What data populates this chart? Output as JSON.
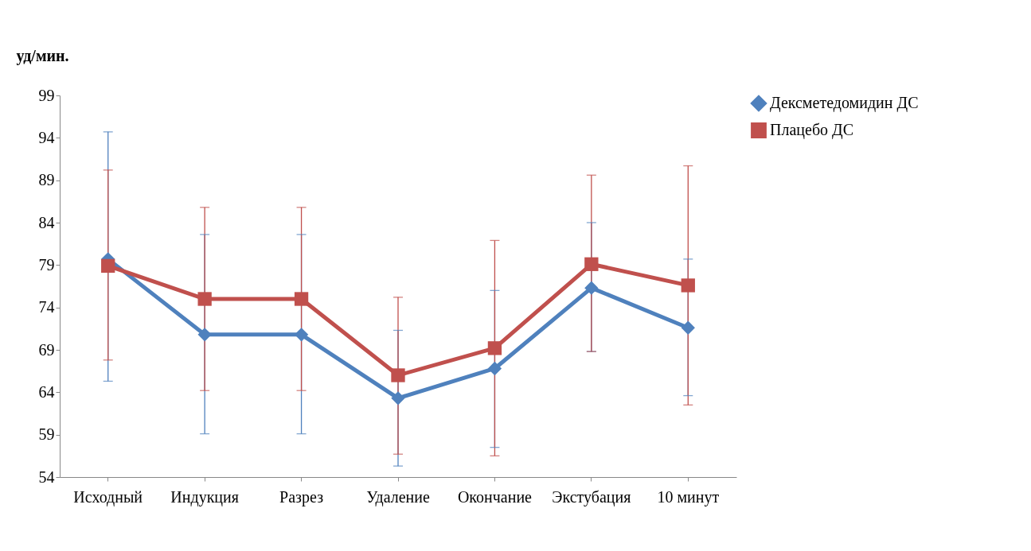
{
  "chart_data": {
    "type": "line",
    "ylabel": "уд/мин.",
    "categories": [
      "Исходный",
      "Индукция",
      "Разрез",
      "Удаление",
      "Окончание",
      "Экстубация",
      "10 минут"
    ],
    "ylim": [
      54,
      99
    ],
    "yticks": [
      54,
      59,
      64,
      69,
      74,
      79,
      84,
      89,
      94,
      99
    ],
    "grid": false,
    "legend": "right",
    "line_style": "solid",
    "series": [
      {
        "name": "Дексметедомидин ДС",
        "color": "#4f81bd",
        "marker": "diamond",
        "values": [
          79.7,
          70.8,
          70.8,
          63.3,
          66.8,
          76.3,
          71.6
        ],
        "errors": [
          [
            65.3,
            94.7
          ],
          [
            59.1,
            82.6
          ],
          [
            59.1,
            82.6
          ],
          [
            55.3,
            71.3
          ],
          [
            57.5,
            76.0
          ],
          [
            68.8,
            84.0
          ],
          [
            63.6,
            79.7
          ]
        ]
      },
      {
        "name": "Плацебо ДС",
        "color": "#c0504d",
        "marker": "square",
        "values": [
          78.9,
          75.0,
          75.0,
          66.0,
          69.2,
          79.1,
          76.6
        ],
        "errors": [
          [
            67.8,
            90.2
          ],
          [
            64.2,
            85.8
          ],
          [
            64.2,
            85.8
          ],
          [
            56.7,
            75.2
          ],
          [
            56.5,
            81.9
          ],
          [
            68.8,
            89.6
          ],
          [
            62.5,
            90.7
          ]
        ]
      }
    ]
  }
}
